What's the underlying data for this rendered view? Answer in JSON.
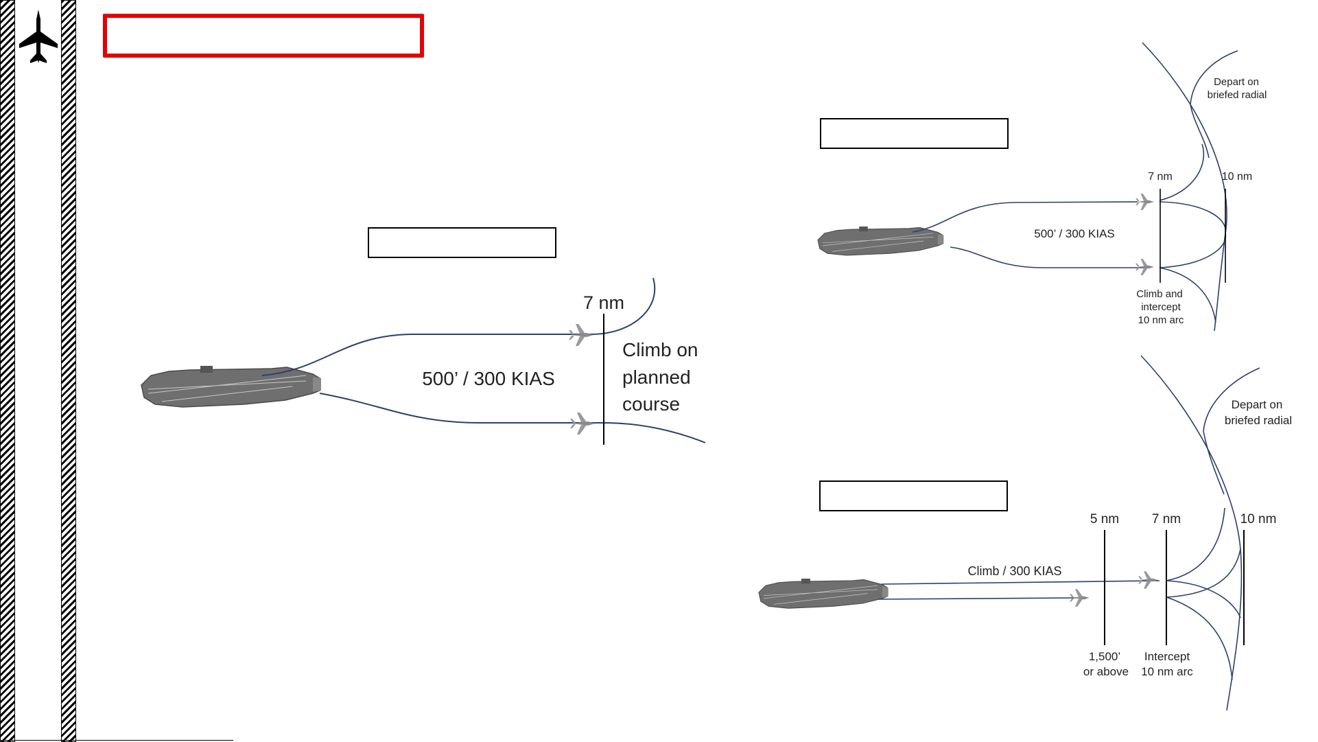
{
  "icons": {
    "sidebar_logo": "fighter-jet-icon",
    "carrier": "aircraft-carrier-icon",
    "jet": "jet-icon"
  },
  "colors": {
    "accent": "#e60000",
    "route": "#2d3e6e",
    "carrier": "#6f6f6f",
    "text": "#222222"
  },
  "diagram_a": {
    "speed_label": "500’ / 300 KIAS",
    "distance_label": "7 nm",
    "climb_line_1": "Climb on",
    "climb_line_2": "planned",
    "climb_line_3": "course"
  },
  "diagram_b": {
    "distance_7": "7 nm",
    "distance_10": "10 nm",
    "speed_label": "500’ / 300 KIAS",
    "depart_line_1": "Depart on",
    "depart_line_2": "briefed radial",
    "climb_line_1": "Climb and",
    "climb_line_2": "intercept",
    "climb_line_3": "10 nm arc"
  },
  "diagram_c": {
    "distance_5": "5 nm",
    "distance_7": "7 nm",
    "distance_10": "10 nm",
    "speed_label": "Climb / 300 KIAS",
    "depart_line_1": "Depart on",
    "depart_line_2": "briefed radial",
    "altitude_line_1": "1,500’",
    "altitude_line_2": "or above",
    "intercept_line_1": "Intercept",
    "intercept_line_2": "10 nm arc"
  }
}
